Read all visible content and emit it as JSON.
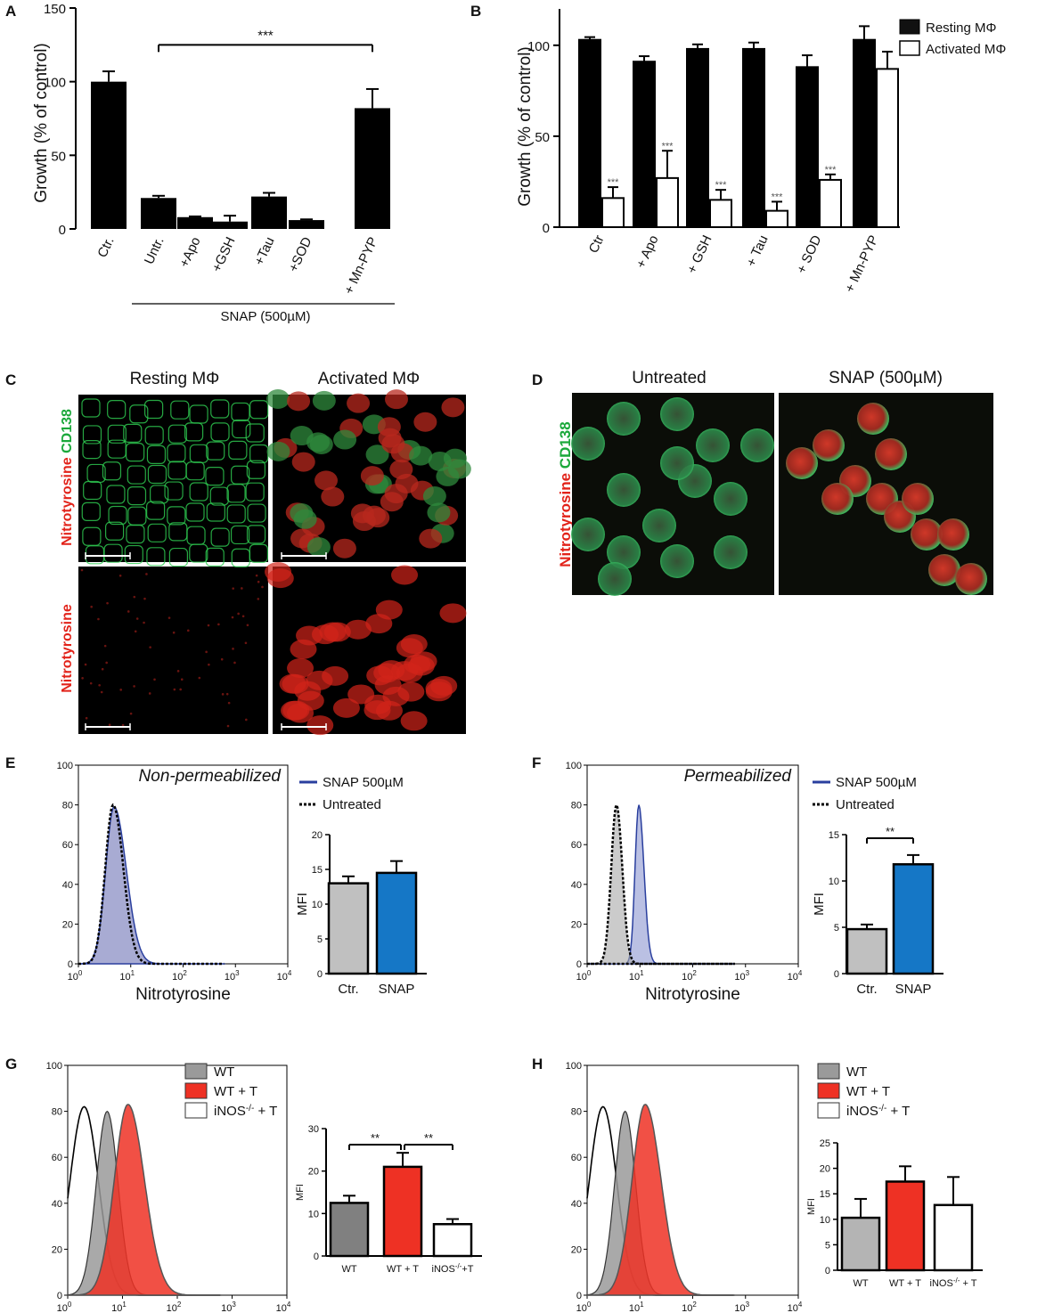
{
  "panels": {
    "A": {
      "letter": "A",
      "chart_data": {
        "type": "bar",
        "ylabel": "Growth (% of control)",
        "ylim": [
          0,
          150
        ],
        "yticks": [
          "0",
          "50",
          "100",
          "150"
        ],
        "categories": [
          "Ctr.",
          "Untr.",
          "+Apo",
          "+GSH",
          "+Tau",
          "+SOD",
          "+ Mn-PYP"
        ],
        "values": [
          100,
          21,
          8,
          5,
          22,
          6,
          82
        ],
        "errors": [
          7,
          1.5,
          0.5,
          4,
          2.5,
          0.5,
          13
        ],
        "group_label": "SNAP (500µM)",
        "significance": "***"
      }
    },
    "B": {
      "letter": "B",
      "chart_data": {
        "type": "bar",
        "ylabel": "Growth (% of control)",
        "ylim": [
          0,
          120
        ],
        "yticks": [
          "0",
          "50",
          "100"
        ],
        "categories": [
          "Ctr",
          "+ Apo",
          "+ GSH",
          "+ Tau",
          "+ SOD",
          "+ Mn-PYP"
        ],
        "series": [
          {
            "name": "Resting MΦ",
            "values": [
              103,
              91,
              98,
              98,
              88,
              103
            ],
            "errors": [
              1.5,
              3,
              2.5,
              3.5,
              6.5,
              7.5
            ],
            "color": "#000000"
          },
          {
            "name": "Activated MΦ",
            "values": [
              16,
              27,
              15,
              9,
              26,
              87
            ],
            "errors": [
              6,
              15,
              5.5,
              5,
              3,
              9.5
            ],
            "color": "#ffffff"
          }
        ],
        "significance": [
          "***",
          "***",
          "***",
          "***",
          "***",
          ""
        ],
        "legend": "top-right"
      }
    },
    "C": {
      "letter": "C",
      "col1": "Resting MΦ",
      "col2": "Activated MΦ",
      "row1_label_red": "Nitrotyrosine",
      "row1_label_green": "CD138",
      "row2_label": "Nitrotyrosine"
    },
    "D": {
      "letter": "D",
      "col1": "Untreated",
      "col2": "SNAP (500µM)",
      "label_red": "Nitrotyrosine",
      "label_green": "CD138"
    },
    "E": {
      "letter": "E",
      "histogram": {
        "note": "Non-permeabilized",
        "xlabel": "Nitrotyrosine",
        "yticks": [
          "0",
          "20",
          "40",
          "60",
          "80",
          "100"
        ],
        "xticks": [
          "10",
          "10",
          "10",
          "10",
          "10"
        ],
        "xexp": [
          "0",
          "1",
          "2",
          "3",
          "4"
        ],
        "legend": [
          "SNAP 500µM",
          "Untreated"
        ],
        "snap_peak": 4.8,
        "untreated_peak": 4.6
      },
      "chart_data": {
        "type": "bar",
        "ylabel": "MFI",
        "ylim": [
          0,
          20
        ],
        "yticks": [
          "0",
          "5",
          "10",
          "15",
          "20"
        ],
        "categories": [
          "Ctr.",
          "SNAP"
        ],
        "values": [
          13,
          14.5
        ],
        "errors": [
          1,
          1.7
        ],
        "colors": [
          "#c0c0c0",
          "#1577c6"
        ]
      }
    },
    "F": {
      "letter": "F",
      "histogram": {
        "note": "Permeabilized",
        "xlabel": "Nitrotyrosine",
        "yticks": [
          "0",
          "20",
          "40",
          "60",
          "80",
          "100"
        ],
        "xticks": [
          "10",
          "10",
          "10",
          "10",
          "10"
        ],
        "xexp": [
          "0",
          "1",
          "2",
          "3",
          "4"
        ],
        "legend": [
          "SNAP 500µM",
          "Untreated"
        ],
        "snap_peak": 9.5,
        "untreated_peak": 3.6
      },
      "chart_data": {
        "type": "bar",
        "ylabel": "MFI",
        "ylim": [
          0,
          15
        ],
        "yticks": [
          "0",
          "5",
          "10",
          "15"
        ],
        "categories": [
          "Ctr.",
          "SNAP"
        ],
        "values": [
          4.8,
          11.8
        ],
        "errors": [
          0.5,
          1
        ],
        "colors": [
          "#c0c0c0",
          "#1577c6"
        ],
        "significance": "**"
      }
    },
    "G": {
      "letter": "G",
      "histogram": {
        "xlabel": "Nitrotyrosine",
        "yticks": [
          "0",
          "20",
          "40",
          "60",
          "80",
          "100"
        ],
        "xticks": [
          "10",
          "10",
          "10",
          "10",
          "10"
        ],
        "xexp": [
          "0",
          "1",
          "2",
          "3",
          "4"
        ],
        "legend": [
          "WT",
          "WT + T",
          "iNOS",
          "-/-",
          " + T"
        ],
        "legend_colors": [
          "#9a9a9a",
          "#ee3124",
          "#ffffff"
        ]
      },
      "chart_data": {
        "type": "bar",
        "ylabel": "MFI",
        "ylim": [
          0,
          30
        ],
        "yticks": [
          "0",
          "10",
          "20",
          "30"
        ],
        "categories": [
          "WT",
          "WT + T",
          "iNOS"
        ],
        "cat_sup": [
          "",
          "",
          "-/-"
        ],
        "cat_tail": [
          "",
          "",
          "+T"
        ],
        "values": [
          12.5,
          21,
          7.5
        ],
        "errors": [
          1.7,
          3.3,
          1.2
        ],
        "colors": [
          "#808080",
          "#ee3124",
          "#ffffff"
        ],
        "significance": [
          "**",
          "**"
        ]
      }
    },
    "H": {
      "letter": "H",
      "histogram": {
        "xlabel": "Nitrotyrosine",
        "yticks": [
          "0",
          "20",
          "40",
          "60",
          "80",
          "100"
        ],
        "xticks": [
          "10",
          "10",
          "10",
          "10",
          "10"
        ],
        "xexp": [
          "0",
          "1",
          "2",
          "3",
          "4"
        ],
        "legend": [
          "WT",
          "WT + T",
          "iNOS",
          "-/-",
          " + T"
        ],
        "legend_colors": [
          "#9a9a9a",
          "#ee3124",
          "#ffffff"
        ]
      },
      "chart_data": {
        "type": "bar",
        "ylabel": "MFI",
        "ylim": [
          0,
          25
        ],
        "yticks": [
          "0",
          "5",
          "10",
          "15",
          "20",
          "25"
        ],
        "categories": [
          "WT",
          "WT + T",
          "iNOS"
        ],
        "cat_sup": [
          "",
          "",
          "-/-"
        ],
        "cat_tail": [
          "",
          "",
          " + T"
        ],
        "values": [
          10.3,
          17.4,
          12.8
        ],
        "errors": [
          3.7,
          3,
          5.5
        ],
        "colors": [
          "#b4b4b4",
          "#ee3124",
          "#ffffff"
        ]
      }
    }
  }
}
